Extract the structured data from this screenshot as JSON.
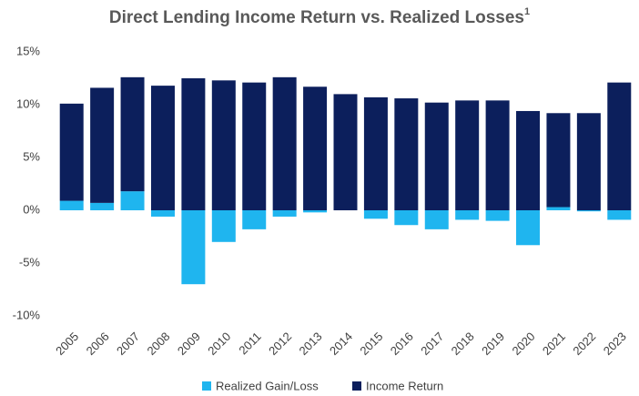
{
  "chart_data": {
    "type": "stacked_bar",
    "title": "Direct Lending Income Return vs. Realized Losses",
    "title_superscript": "1",
    "categories": [
      "2005",
      "2006",
      "2007",
      "2008",
      "2009",
      "2010",
      "2011",
      "2012",
      "2013",
      "2014",
      "2015",
      "2016",
      "2017",
      "2018",
      "2019",
      "2020",
      "2021",
      "2022",
      "2023"
    ],
    "series": [
      {
        "name": "Realized Gain/Loss",
        "color": "#1fb5ef",
        "values": [
          0.9,
          0.7,
          1.8,
          -0.6,
          -7.0,
          -3.0,
          -1.8,
          -0.6,
          -0.2,
          0,
          -0.8,
          -1.4,
          -1.8,
          -0.9,
          -1.0,
          -3.3,
          0.3,
          -0.1,
          -0.9
        ]
      },
      {
        "name": "Income Return",
        "color": "#0c1f5c",
        "values": [
          9.2,
          10.9,
          10.8,
          11.8,
          12.5,
          12.3,
          12.1,
          12.6,
          11.7,
          11.0,
          10.7,
          10.6,
          10.2,
          10.4,
          10.4,
          9.4,
          8.9,
          9.2,
          12.1
        ]
      }
    ],
    "ylim": [
      -10,
      15
    ],
    "yticks": [
      {
        "value": -10,
        "label": "-10%"
      },
      {
        "value": -5,
        "label": "-5%"
      },
      {
        "value": 0,
        "label": "0%"
      },
      {
        "value": 5,
        "label": "5%"
      },
      {
        "value": 10,
        "label": "10%"
      },
      {
        "value": 15,
        "label": "15%"
      }
    ],
    "grid": false,
    "legend": "bottom"
  }
}
